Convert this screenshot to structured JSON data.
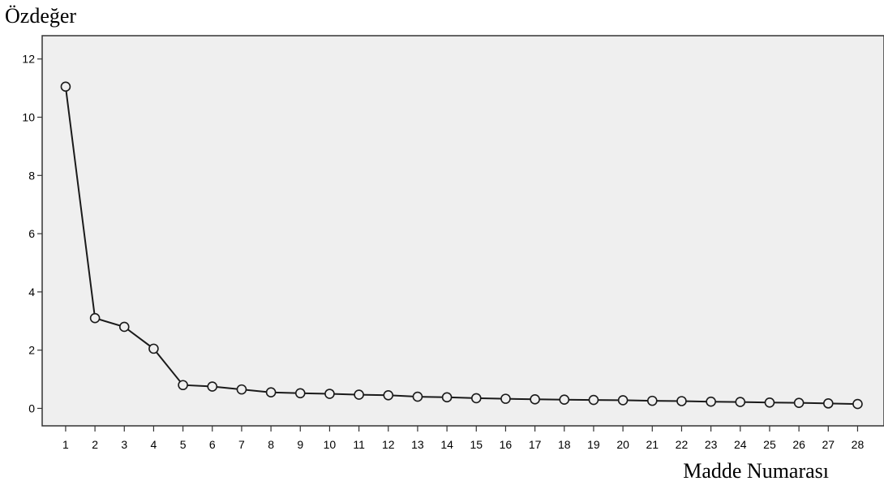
{
  "chart_data": {
    "type": "line",
    "title": "",
    "ylabel": "Özdeğer",
    "xlabel": "Madde Numarası",
    "x": [
      1,
      2,
      3,
      4,
      5,
      6,
      7,
      8,
      9,
      10,
      11,
      12,
      13,
      14,
      15,
      16,
      17,
      18,
      19,
      20,
      21,
      22,
      23,
      24,
      25,
      26,
      27,
      28
    ],
    "y": [
      11.05,
      3.1,
      2.8,
      2.05,
      0.8,
      0.75,
      0.65,
      0.55,
      0.52,
      0.5,
      0.47,
      0.45,
      0.4,
      0.38,
      0.35,
      0.33,
      0.31,
      0.3,
      0.29,
      0.28,
      0.26,
      0.25,
      0.23,
      0.22,
      0.2,
      0.19,
      0.17,
      0.15
    ],
    "ylim": [
      -0.6,
      12.8
    ],
    "yticks": [
      0,
      2,
      4,
      6,
      8,
      10,
      12
    ],
    "xlim": [
      0.2,
      28.9
    ],
    "grid": false,
    "colors": {
      "plot_background": "#efefef",
      "line": "#1a1a1a",
      "axis": "#333333",
      "text": "#000000"
    }
  }
}
